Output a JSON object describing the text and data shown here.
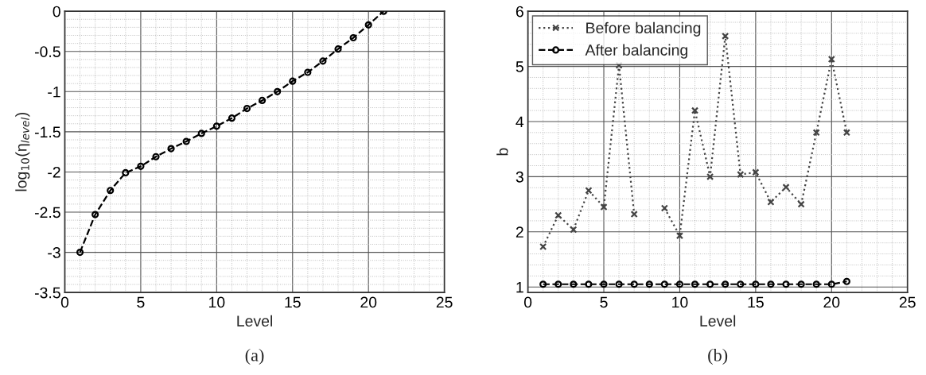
{
  "chart_data": [
    {
      "type": "line",
      "xlabel": "Level",
      "ylabel": "log$_{10}$(η$_{level}$)",
      "x": [
        1,
        2,
        3,
        4,
        5,
        6,
        7,
        8,
        9,
        10,
        11,
        12,
        13,
        14,
        15,
        16,
        17,
        18,
        19,
        20,
        21
      ],
      "series": [
        {
          "color": "#000000",
          "marker": "circle",
          "line_style": "dashed",
          "values": [
            -3.0,
            -2.53,
            -2.23,
            -2.01,
            -1.93,
            -1.81,
            -1.71,
            -1.62,
            -1.52,
            -1.43,
            -1.33,
            -1.21,
            -1.11,
            -1.0,
            -0.87,
            -0.76,
            -0.62,
            -0.47,
            -0.33,
            -0.17,
            0.0
          ]
        }
      ],
      "xlim": [
        0,
        25
      ],
      "xticks": [
        0,
        5,
        10,
        15,
        20,
        25
      ],
      "ylim": [
        -3.5,
        0
      ],
      "yticks": [
        -3.5,
        -3,
        -2.5,
        -2,
        -1.5,
        -1,
        -0.5,
        0
      ],
      "grid": true,
      "annotations": [
        "(a)"
      ]
    },
    {
      "type": "line",
      "xlabel": "Level",
      "ylabel": "b",
      "x": [
        1,
        2,
        3,
        4,
        5,
        6,
        7,
        8,
        9,
        10,
        11,
        12,
        13,
        14,
        15,
        16,
        17,
        18,
        19,
        20,
        21
      ],
      "series": [
        {
          "name": "Before balancing",
          "color": "#444444",
          "marker": "cross",
          "line_style": "dotted",
          "values": [
            1.73,
            2.3,
            2.04,
            2.75,
            2.45,
            5.02,
            2.32,
            null,
            2.43,
            1.93,
            4.2,
            3.0,
            5.55,
            3.04,
            3.08,
            2.54,
            2.81,
            2.5,
            3.8,
            5.13,
            3.8
          ]
        },
        {
          "name": "After balancing",
          "color": "#000000",
          "marker": "circle",
          "line_style": "dashed",
          "values": [
            1.05,
            1.05,
            1.05,
            1.05,
            1.05,
            1.05,
            1.05,
            1.05,
            1.05,
            1.05,
            1.05,
            1.05,
            1.05,
            1.05,
            1.05,
            1.05,
            1.05,
            1.05,
            1.05,
            1.05,
            1.1
          ]
        }
      ],
      "xlim": [
        0,
        25
      ],
      "xticks": [
        0,
        5,
        10,
        15,
        20,
        25
      ],
      "ylim": [
        0.9,
        6
      ],
      "yticks": [
        1,
        2,
        3,
        4,
        5,
        6
      ],
      "grid": true,
      "legend": "top left",
      "annotations": [
        "(b)"
      ]
    }
  ]
}
